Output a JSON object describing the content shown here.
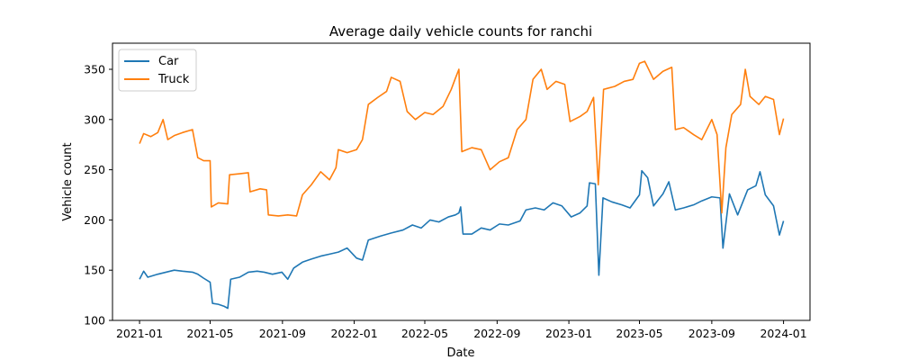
{
  "chart_data": {
    "type": "line",
    "title": "Average daily vehicle counts for ranchi",
    "xlabel": "Date",
    "ylabel": "Vehicle count",
    "xlim": [
      "2020-11-16",
      "2024-02-15"
    ],
    "ylim": [
      100,
      376
    ],
    "x_ticks": [
      "2021-01-01",
      "2021-05-01",
      "2021-09-01",
      "2022-01-01",
      "2022-05-01",
      "2022-09-01",
      "2023-01-01",
      "2023-05-01",
      "2023-09-01",
      "2024-01-01"
    ],
    "x_tick_labels": [
      "2021-01",
      "2021-05",
      "2021-09",
      "2022-01",
      "2022-05",
      "2022-09",
      "2023-01",
      "2023-05",
      "2023-09",
      "2024-01"
    ],
    "y_ticks": [
      100,
      150,
      200,
      250,
      300,
      350
    ],
    "grid": false,
    "legend_position": "top-left",
    "series": [
      {
        "name": "Car",
        "color": "#1f77b4",
        "points": [
          [
            "2021-01-01",
            141
          ],
          [
            "2021-01-08",
            149
          ],
          [
            "2021-01-15",
            143
          ],
          [
            "2021-02-01",
            146
          ],
          [
            "2021-02-15",
            148
          ],
          [
            "2021-03-01",
            150
          ],
          [
            "2021-03-15",
            149
          ],
          [
            "2021-04-01",
            148
          ],
          [
            "2021-04-10",
            146
          ],
          [
            "2021-04-20",
            142
          ],
          [
            "2021-05-01",
            138
          ],
          [
            "2021-05-05",
            117
          ],
          [
            "2021-05-15",
            116
          ],
          [
            "2021-05-25",
            114
          ],
          [
            "2021-05-31",
            112
          ],
          [
            "2021-06-05",
            141
          ],
          [
            "2021-06-20",
            143
          ],
          [
            "2021-07-05",
            148
          ],
          [
            "2021-07-20",
            149
          ],
          [
            "2021-08-01",
            148
          ],
          [
            "2021-08-15",
            146
          ],
          [
            "2021-08-31",
            148
          ],
          [
            "2021-09-10",
            141
          ],
          [
            "2021-09-20",
            152
          ],
          [
            "2021-10-05",
            158
          ],
          [
            "2021-10-20",
            161
          ],
          [
            "2021-11-05",
            164
          ],
          [
            "2021-11-20",
            166
          ],
          [
            "2021-12-05",
            168
          ],
          [
            "2021-12-20",
            172
          ],
          [
            "2022-01-05",
            162
          ],
          [
            "2022-01-15",
            160
          ],
          [
            "2022-01-25",
            180
          ],
          [
            "2022-02-15",
            184
          ],
          [
            "2022-03-05",
            187
          ],
          [
            "2022-03-25",
            190
          ],
          [
            "2022-04-10",
            195
          ],
          [
            "2022-04-25",
            192
          ],
          [
            "2022-05-10",
            200
          ],
          [
            "2022-05-25",
            198
          ],
          [
            "2022-06-10",
            203
          ],
          [
            "2022-06-22",
            205
          ],
          [
            "2022-06-28",
            207
          ],
          [
            "2022-07-01",
            213
          ],
          [
            "2022-07-05",
            186
          ],
          [
            "2022-07-20",
            186
          ],
          [
            "2022-08-05",
            192
          ],
          [
            "2022-08-20",
            190
          ],
          [
            "2022-09-05",
            196
          ],
          [
            "2022-09-20",
            195
          ],
          [
            "2022-10-10",
            199
          ],
          [
            "2022-10-20",
            210
          ],
          [
            "2022-11-05",
            212
          ],
          [
            "2022-11-20",
            210
          ],
          [
            "2022-12-05",
            217
          ],
          [
            "2022-12-20",
            214
          ],
          [
            "2023-01-05",
            203
          ],
          [
            "2023-01-20",
            207
          ],
          [
            "2023-02-01",
            214
          ],
          [
            "2023-02-05",
            237
          ],
          [
            "2023-02-15",
            236
          ],
          [
            "2023-02-21",
            145
          ],
          [
            "2023-02-28",
            222
          ],
          [
            "2023-03-15",
            218
          ],
          [
            "2023-04-01",
            215
          ],
          [
            "2023-04-15",
            212
          ],
          [
            "2023-05-01",
            225
          ],
          [
            "2023-05-05",
            249
          ],
          [
            "2023-05-15",
            242
          ],
          [
            "2023-05-25",
            214
          ],
          [
            "2023-06-10",
            226
          ],
          [
            "2023-06-20",
            238
          ],
          [
            "2023-07-01",
            210
          ],
          [
            "2023-07-15",
            212
          ],
          [
            "2023-08-01",
            215
          ],
          [
            "2023-08-15",
            219
          ],
          [
            "2023-09-01",
            223
          ],
          [
            "2023-09-15",
            222
          ],
          [
            "2023-09-20",
            172
          ],
          [
            "2023-10-01",
            226
          ],
          [
            "2023-10-15",
            205
          ],
          [
            "2023-11-01",
            230
          ],
          [
            "2023-11-15",
            234
          ],
          [
            "2023-11-22",
            248
          ],
          [
            "2023-12-01",
            225
          ],
          [
            "2023-12-15",
            214
          ],
          [
            "2023-12-25",
            185
          ],
          [
            "2024-01-01",
            199
          ]
        ]
      },
      {
        "name": "Truck",
        "color": "#ff7f0e",
        "points": [
          [
            "2021-01-01",
            276
          ],
          [
            "2021-01-08",
            286
          ],
          [
            "2021-01-20",
            283
          ],
          [
            "2021-02-01",
            287
          ],
          [
            "2021-02-10",
            300
          ],
          [
            "2021-02-18",
            280
          ],
          [
            "2021-03-01",
            284
          ],
          [
            "2021-03-15",
            287
          ],
          [
            "2021-04-01",
            290
          ],
          [
            "2021-04-10",
            262
          ],
          [
            "2021-04-20",
            259
          ],
          [
            "2021-05-01",
            259
          ],
          [
            "2021-05-03",
            213
          ],
          [
            "2021-05-15",
            217
          ],
          [
            "2021-05-31",
            216
          ],
          [
            "2021-06-03",
            245
          ],
          [
            "2021-06-20",
            246
          ],
          [
            "2021-07-05",
            247
          ],
          [
            "2021-07-08",
            228
          ],
          [
            "2021-07-25",
            231
          ],
          [
            "2021-08-05",
            230
          ],
          [
            "2021-08-08",
            205
          ],
          [
            "2021-08-25",
            204
          ],
          [
            "2021-09-10",
            205
          ],
          [
            "2021-09-25",
            204
          ],
          [
            "2021-10-05",
            225
          ],
          [
            "2021-10-20",
            235
          ],
          [
            "2021-11-05",
            248
          ],
          [
            "2021-11-20",
            240
          ],
          [
            "2021-12-01",
            252
          ],
          [
            "2021-12-05",
            270
          ],
          [
            "2021-12-20",
            267
          ],
          [
            "2022-01-05",
            270
          ],
          [
            "2022-01-15",
            280
          ],
          [
            "2022-01-25",
            315
          ],
          [
            "2022-02-10",
            322
          ],
          [
            "2022-02-25",
            328
          ],
          [
            "2022-03-05",
            342
          ],
          [
            "2022-03-20",
            338
          ],
          [
            "2022-04-01",
            308
          ],
          [
            "2022-04-15",
            300
          ],
          [
            "2022-05-01",
            307
          ],
          [
            "2022-05-15",
            305
          ],
          [
            "2022-06-01",
            313
          ],
          [
            "2022-06-15",
            330
          ],
          [
            "2022-06-22",
            341
          ],
          [
            "2022-06-28",
            350
          ],
          [
            "2022-07-03",
            268
          ],
          [
            "2022-07-20",
            272
          ],
          [
            "2022-08-05",
            270
          ],
          [
            "2022-08-20",
            250
          ],
          [
            "2022-09-05",
            258
          ],
          [
            "2022-09-20",
            262
          ],
          [
            "2022-10-05",
            290
          ],
          [
            "2022-10-20",
            300
          ],
          [
            "2022-11-01",
            340
          ],
          [
            "2022-11-15",
            350
          ],
          [
            "2022-11-25",
            330
          ],
          [
            "2022-12-10",
            338
          ],
          [
            "2022-12-25",
            335
          ],
          [
            "2023-01-03",
            298
          ],
          [
            "2023-01-20",
            303
          ],
          [
            "2023-02-01",
            308
          ],
          [
            "2023-02-12",
            322
          ],
          [
            "2023-02-20",
            235
          ],
          [
            "2023-03-01",
            330
          ],
          [
            "2023-03-20",
            333
          ],
          [
            "2023-04-05",
            338
          ],
          [
            "2023-04-20",
            340
          ],
          [
            "2023-05-01",
            356
          ],
          [
            "2023-05-10",
            358
          ],
          [
            "2023-05-25",
            340
          ],
          [
            "2023-06-10",
            348
          ],
          [
            "2023-06-25",
            352
          ],
          [
            "2023-07-01",
            290
          ],
          [
            "2023-07-15",
            292
          ],
          [
            "2023-08-01",
            285
          ],
          [
            "2023-08-15",
            280
          ],
          [
            "2023-09-01",
            300
          ],
          [
            "2023-09-10",
            285
          ],
          [
            "2023-09-18",
            207
          ],
          [
            "2023-09-25",
            272
          ],
          [
            "2023-10-05",
            305
          ],
          [
            "2023-10-20",
            315
          ],
          [
            "2023-10-28",
            350
          ],
          [
            "2023-11-05",
            323
          ],
          [
            "2023-11-20",
            315
          ],
          [
            "2023-12-01",
            323
          ],
          [
            "2023-12-15",
            320
          ],
          [
            "2023-12-25",
            285
          ],
          [
            "2024-01-01",
            301
          ]
        ]
      }
    ]
  }
}
